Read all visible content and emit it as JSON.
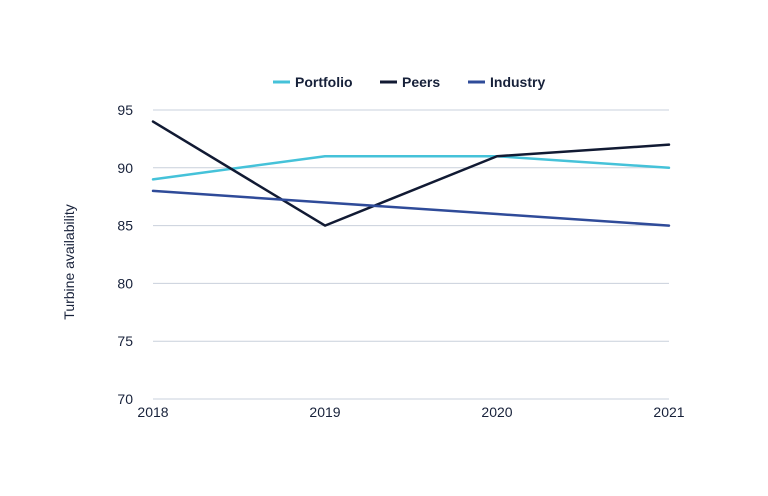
{
  "chart_data": {
    "type": "line",
    "title": "",
    "xlabel": "",
    "ylabel": "Turbine availability",
    "x": [
      "2018",
      "2019",
      "2020",
      "2021"
    ],
    "ylim": [
      70,
      95
    ],
    "yticks": [
      70,
      75,
      80,
      85,
      90,
      95
    ],
    "grid": true,
    "legend_position": "top-center",
    "series": [
      {
        "name": "Portfolio",
        "color": "#45c2d9",
        "values": [
          89,
          91,
          91,
          90
        ]
      },
      {
        "name": "Peers",
        "color": "#111a33",
        "values": [
          94,
          85,
          91,
          92
        ]
      },
      {
        "name": "Industry",
        "color": "#2f4b99",
        "values": [
          88,
          87,
          86,
          85
        ]
      }
    ]
  },
  "colors": {
    "grid": "#c9d0dc",
    "text": "#17213a"
  }
}
